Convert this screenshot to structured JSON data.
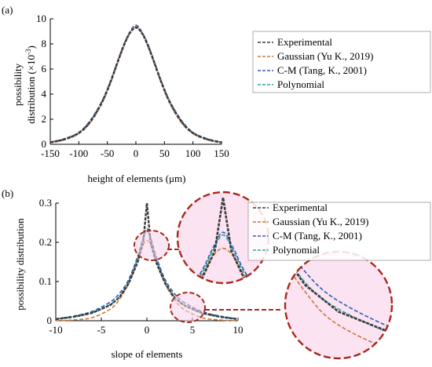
{
  "colors": {
    "experimental": "#3a3a3a",
    "gaussian": "#c8783c",
    "cm": "#2f5fb4",
    "polynomial": "#2aa79b",
    "zoom_circle": "#a8281c",
    "zoom_fill": "#f7d3ea"
  },
  "chart_data": [
    {
      "panel_label": "(a)",
      "type": "line",
      "xlabel": "height of elements (μm)",
      "ylabel_line1": "possibility",
      "ylabel_line2": "distribution (×10",
      "ylabel_exp": "-3",
      "ylabel_close": ")",
      "xlim": [
        -150,
        150
      ],
      "ylim": [
        0,
        10
      ],
      "xticks": [
        -150,
        -100,
        -50,
        0,
        50,
        100,
        150
      ],
      "yticks": [
        0,
        2,
        4,
        6,
        8,
        10
      ],
      "legend": [
        "Experimental",
        "Gaussian (Yu K., 2019)",
        "C-M (Tang, K., 2001)",
        "Polynomial"
      ],
      "legend_position": "right",
      "series": [
        {
          "name": "Experimental",
          "x": [
            -150,
            -125,
            -100,
            -80,
            -60,
            -45,
            -30,
            -20,
            -10,
            0,
            10,
            20,
            30,
            45,
            60,
            80,
            100,
            125,
            150
          ],
          "y": [
            0.15,
            0.4,
            0.9,
            1.8,
            3.3,
            4.9,
            6.8,
            8.0,
            8.9,
            9.3,
            8.9,
            8.0,
            6.8,
            4.9,
            3.3,
            1.8,
            0.9,
            0.4,
            0.15
          ]
        },
        {
          "name": "Gaussian (Yu K., 2019)",
          "x": [
            -150,
            -125,
            -100,
            -80,
            -60,
            -45,
            -30,
            -20,
            -10,
            0,
            10,
            20,
            30,
            45,
            60,
            80,
            100,
            125,
            150
          ],
          "y": [
            0.12,
            0.35,
            0.85,
            1.7,
            3.2,
            4.8,
            6.7,
            7.9,
            8.9,
            9.4,
            8.9,
            7.9,
            6.7,
            4.8,
            3.2,
            1.7,
            0.85,
            0.35,
            0.12
          ]
        },
        {
          "name": "C-M (Tang, K., 2001)",
          "x": [
            -150,
            -125,
            -100,
            -80,
            -60,
            -45,
            -30,
            -20,
            -10,
            0,
            10,
            20,
            30,
            45,
            60,
            80,
            100,
            125,
            150
          ],
          "y": [
            0.18,
            0.45,
            0.95,
            1.9,
            3.4,
            5.0,
            6.9,
            8.1,
            9.0,
            9.5,
            9.0,
            8.1,
            6.9,
            5.0,
            3.4,
            1.9,
            0.95,
            0.45,
            0.18
          ]
        },
        {
          "name": "Polynomial",
          "x": [
            -150,
            -125,
            -100,
            -80,
            -60,
            -45,
            -30,
            -20,
            -10,
            0,
            10,
            20,
            30,
            45,
            60,
            80,
            100,
            125,
            150
          ],
          "y": [
            0.16,
            0.42,
            0.92,
            1.85,
            3.35,
            4.95,
            6.85,
            8.05,
            8.95,
            9.45,
            8.95,
            8.05,
            6.85,
            4.95,
            3.35,
            1.85,
            0.92,
            0.42,
            0.16
          ]
        }
      ]
    },
    {
      "panel_label": "(b)",
      "type": "line",
      "xlabel": "slope of elements",
      "ylabel": "possibility distribution",
      "xlim": [
        -10,
        10
      ],
      "ylim": [
        0,
        0.3
      ],
      "xticks": [
        -10,
        -5,
        0,
        5,
        10
      ],
      "yticks": [
        0,
        0.1,
        0.2,
        0.3
      ],
      "legend": [
        "Experimental",
        "Gaussian (Yu K., 2019)",
        "C-M (Tang, K., 2001)",
        "Polynomial"
      ],
      "legend_position": "top-right",
      "series": [
        {
          "name": "Experimental",
          "x": [
            -10,
            -8,
            -6,
            -4,
            -3,
            -2,
            -1,
            -0.4,
            0,
            0.4,
            1,
            2,
            3,
            4,
            6,
            8,
            10
          ],
          "y": [
            0.004,
            0.01,
            0.02,
            0.04,
            0.06,
            0.095,
            0.15,
            0.2,
            0.3,
            0.2,
            0.15,
            0.095,
            0.06,
            0.04,
            0.02,
            0.01,
            0.004
          ]
        },
        {
          "name": "Gaussian (Yu K., 2019)",
          "x": [
            -10,
            -8,
            -6,
            -4,
            -3,
            -2,
            -1,
            -0.5,
            0,
            0.5,
            1,
            2,
            3,
            4,
            6,
            8,
            10
          ],
          "y": [
            0.0,
            0.002,
            0.008,
            0.03,
            0.055,
            0.095,
            0.155,
            0.19,
            0.205,
            0.19,
            0.155,
            0.095,
            0.055,
            0.03,
            0.008,
            0.002,
            0.0
          ]
        },
        {
          "name": "C-M (Tang, K., 2001)",
          "x": [
            -10,
            -8,
            -6,
            -4,
            -3,
            -2,
            -1,
            -0.5,
            0,
            0.5,
            1,
            2,
            3,
            4,
            6,
            8,
            10
          ],
          "y": [
            0.005,
            0.012,
            0.024,
            0.048,
            0.07,
            0.105,
            0.165,
            0.205,
            0.235,
            0.205,
            0.165,
            0.105,
            0.07,
            0.048,
            0.024,
            0.012,
            0.005
          ]
        },
        {
          "name": "Polynomial",
          "x": [
            -10,
            -8,
            -6,
            -4,
            -3,
            -2,
            -1,
            -0.5,
            0,
            0.5,
            1,
            2,
            3,
            4,
            6,
            8,
            10
          ],
          "y": [
            0.004,
            0.01,
            0.02,
            0.042,
            0.062,
            0.1,
            0.16,
            0.2,
            0.23,
            0.2,
            0.16,
            0.1,
            0.062,
            0.042,
            0.02,
            0.01,
            0.004
          ]
        }
      ]
    }
  ]
}
